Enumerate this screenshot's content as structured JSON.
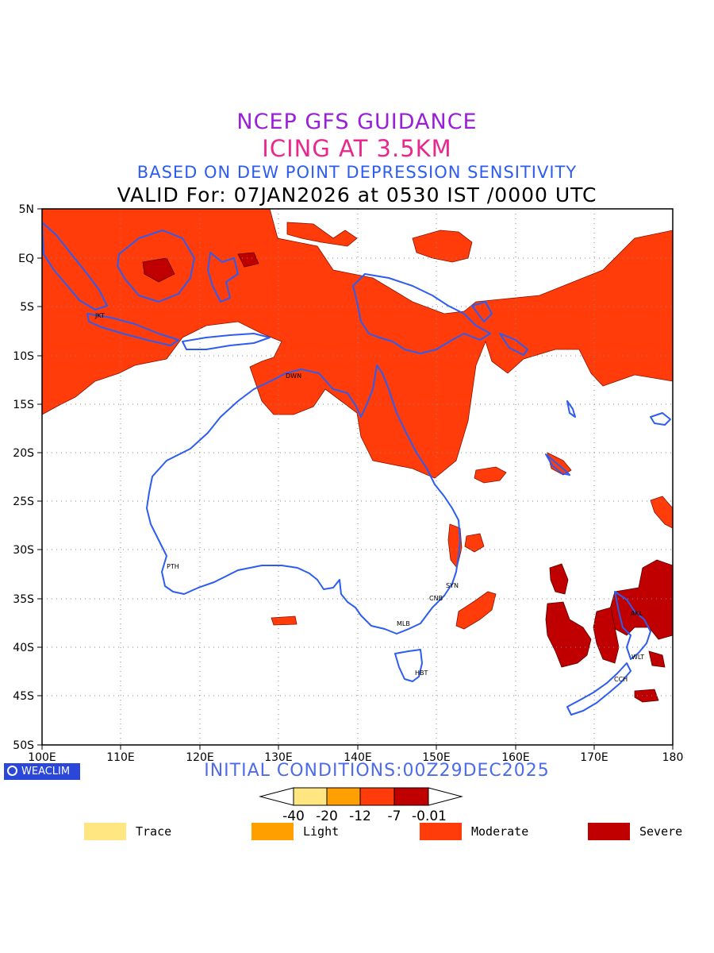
{
  "titles": {
    "line1": "NCEP GFS GUIDANCE",
    "line2": "ICING AT 3.5KM",
    "line3": "BASED ON DEW POINT DEPRESSION SENSITIVITY",
    "line4": "VALID For: 07JAN2026 at 0530 IST /0000 UTC"
  },
  "axes": {
    "lat_labels": [
      "5N",
      "EQ",
      "5S",
      "10S",
      "15S",
      "20S",
      "25S",
      "30S",
      "35S",
      "40S",
      "45S",
      "50S"
    ],
    "lon_labels": [
      "100E",
      "110E",
      "120E",
      "130E",
      "140E",
      "150E",
      "160E",
      "170E",
      "180"
    ]
  },
  "cities": [
    {
      "code": "JKT"
    },
    {
      "code": "DWN"
    },
    {
      "code": "PTH"
    },
    {
      "code": "SYN"
    },
    {
      "code": "CNB"
    },
    {
      "code": "MLB"
    },
    {
      "code": "HBT"
    },
    {
      "code": "AKL"
    },
    {
      "code": "WLT"
    },
    {
      "code": "CCH"
    }
  ],
  "branding": {
    "logo_text": "WEACLIM"
  },
  "initial_conditions": "INITIAL CONDITIONS:00Z29DEC2025",
  "colorbar": {
    "tick_labels": [
      "-40",
      "-20",
      "-12",
      "-7",
      "-0.01"
    ],
    "colors": [
      "#ffe680",
      "#ffa000",
      "#ff3c0a",
      "#c00000"
    ]
  },
  "legend": [
    {
      "label": "Trace",
      "color": "#ffe680"
    },
    {
      "label": "Light",
      "color": "#ffa000"
    },
    {
      "label": "Moderate",
      "color": "#ff3c0a"
    },
    {
      "label": "Severe",
      "color": "#c00000"
    }
  ],
  "colors": {
    "moderate": "#ff3c0a",
    "severe": "#c00000",
    "coast": "#2d5df0"
  }
}
